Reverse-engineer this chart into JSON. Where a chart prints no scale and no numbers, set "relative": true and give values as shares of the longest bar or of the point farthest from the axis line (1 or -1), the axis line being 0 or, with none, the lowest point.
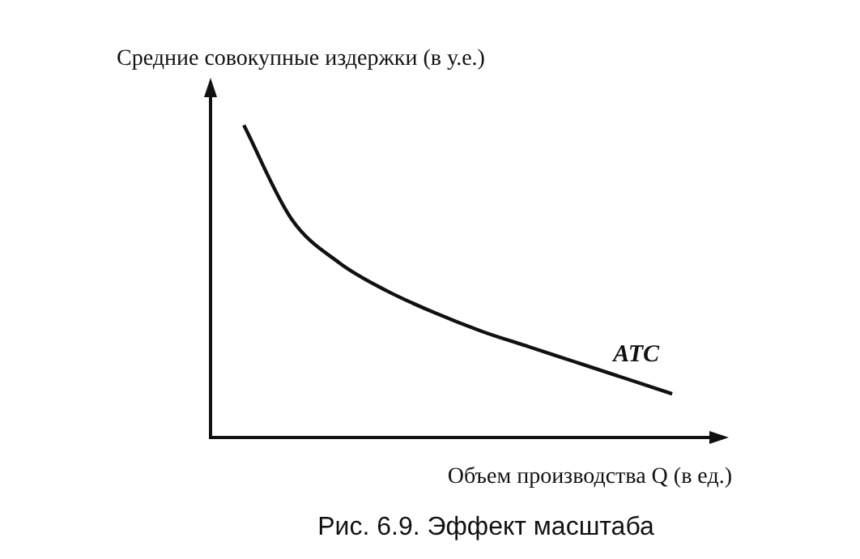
{
  "chart_data": {
    "type": "line",
    "relative": true,
    "ylabel": "Средние совокупные издержки (в у.е.)",
    "xlabel": "Объем производства Q (в ед.)",
    "annotations": [
      "Рис. 6.9. Эффект масштаба"
    ],
    "categories": [
      null,
      null,
      null,
      null,
      null,
      null,
      null,
      null,
      null,
      null
    ],
    "series": [
      {
        "name": "ATC",
        "color": "#111111",
        "values": [
          1.0,
          0.7,
          0.56,
          0.47,
          0.4,
          0.34,
          0.29,
          0.24,
          0.19,
          0.14
        ]
      }
    ],
    "legend": false,
    "grid": false,
    "marker": "none",
    "line_style": "solid"
  }
}
